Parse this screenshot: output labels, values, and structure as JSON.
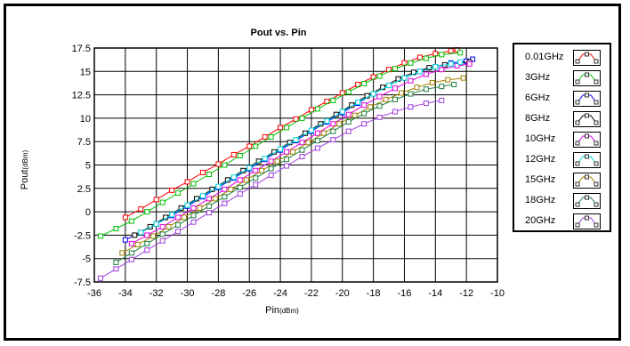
{
  "chart_data": {
    "type": "line",
    "title": "Pout vs. Pin",
    "xlabel": "Pin",
    "xlabel_unit": "(dBm)",
    "ylabel": "Pout",
    "ylabel_unit": "(dBm)",
    "xlim": [
      -36,
      -10
    ],
    "ylim": [
      -7.5,
      17.5
    ],
    "xticks": [
      "-36",
      "-34",
      "-32",
      "-30",
      "-28",
      "-26",
      "-24",
      "-22",
      "-20",
      "-18",
      "-16",
      "-14",
      "-12",
      "-10"
    ],
    "yticks": [
      "17.5",
      "15",
      "12.5",
      "10",
      "7.5",
      "5",
      "2.5",
      "0",
      "-2.5",
      "-5",
      "-7.5"
    ],
    "grid": true,
    "legend_position": "right",
    "series": [
      {
        "name": "0.01GHz",
        "color": "#ff0000",
        "x": [
          -34,
          -33,
          -32,
          -31,
          -30,
          -29,
          -28,
          -27,
          -26,
          -25,
          -24,
          -23,
          -22,
          -21,
          -20,
          -19,
          -18,
          -17,
          -16,
          -15,
          -14,
          -13,
          -12.6
        ],
        "y": [
          -0.6,
          0.3,
          1.3,
          2.3,
          3.2,
          4.2,
          5.1,
          6.1,
          7.0,
          8.0,
          9.0,
          9.9,
          10.9,
          11.8,
          12.7,
          13.6,
          14.4,
          15.2,
          15.9,
          16.5,
          16.9,
          17.2,
          17.3
        ]
      },
      {
        "name": "3GHz",
        "color": "#00c000",
        "x": [
          -35.6,
          -34.6,
          -33.6,
          -32.6,
          -31.6,
          -30.6,
          -29.6,
          -28.6,
          -27.6,
          -26.6,
          -25.6,
          -24.6,
          -23.6,
          -22.6,
          -21.6,
          -20.6,
          -19.6,
          -18.6,
          -17.6,
          -16.6,
          -15.6,
          -14.6,
          -13.6,
          -12.4
        ],
        "y": [
          -2.6,
          -1.8,
          -1.0,
          0.0,
          1.0,
          2.0,
          3.0,
          4.0,
          5.0,
          6.0,
          7.0,
          8.0,
          9.0,
          10.0,
          11.0,
          11.9,
          12.8,
          13.7,
          14.5,
          15.3,
          15.9,
          16.4,
          16.8,
          17.0
        ]
      },
      {
        "name": "6GHz",
        "color": "#0000ff",
        "x": [
          -34,
          -33,
          -32,
          -31,
          -30,
          -29,
          -28,
          -27,
          -26,
          -25,
          -24,
          -23,
          -22,
          -21,
          -20,
          -19,
          -18,
          -17,
          -16,
          -15,
          -14,
          -13,
          -12,
          -11.6
        ],
        "y": [
          -3.0,
          -2.2,
          -1.3,
          -0.4,
          0.6,
          1.6,
          2.6,
          3.6,
          4.6,
          5.6,
          6.6,
          7.6,
          8.6,
          9.6,
          10.6,
          11.6,
          12.6,
          13.5,
          14.3,
          15.0,
          15.5,
          15.9,
          16.1,
          16.3
        ]
      },
      {
        "name": "8GHz",
        "color": "#000000",
        "x": [
          -33.4,
          -32.4,
          -31.4,
          -30.4,
          -29.4,
          -28.4,
          -27.4,
          -26.4,
          -25.4,
          -24.4,
          -23.4,
          -22.4,
          -21.4,
          -20.4,
          -19.4,
          -18.4,
          -17.4,
          -16.4,
          -15.4,
          -14.4,
          -13.4,
          -12.4,
          -11.8
        ],
        "y": [
          -2.5,
          -1.6,
          -0.6,
          0.4,
          1.4,
          2.4,
          3.4,
          4.4,
          5.4,
          6.4,
          7.4,
          8.4,
          9.4,
          10.4,
          11.4,
          12.4,
          13.3,
          14.2,
          14.9,
          15.4,
          15.7,
          15.9,
          16.0
        ]
      },
      {
        "name": "10GHz",
        "color": "#e000e0",
        "x": [
          -33.6,
          -32.6,
          -31.6,
          -30.6,
          -29.6,
          -28.6,
          -27.6,
          -26.6,
          -25.6,
          -24.6,
          -23.6,
          -22.6,
          -21.6,
          -20.6,
          -19.6,
          -18.6,
          -17.6,
          -16.6,
          -15.6,
          -14.6,
          -13.6,
          -12.6,
          -11.8
        ],
        "y": [
          -3.4,
          -2.5,
          -1.6,
          -0.6,
          0.4,
          1.4,
          2.4,
          3.4,
          4.4,
          5.4,
          6.4,
          7.4,
          8.4,
          9.4,
          10.4,
          11.4,
          12.3,
          13.2,
          14.0,
          14.7,
          15.2,
          15.6,
          15.8
        ]
      },
      {
        "name": "12GHz",
        "color": "#00d8d8",
        "x": [
          -33,
          -32,
          -31,
          -30,
          -29,
          -28,
          -27,
          -26,
          -25,
          -24,
          -23,
          -22,
          -21,
          -20,
          -19,
          -18,
          -17,
          -16,
          -15,
          -14,
          -13,
          -12.4
        ],
        "y": [
          -2.2,
          -1.3,
          -0.3,
          0.7,
          1.7,
          2.7,
          3.7,
          4.7,
          5.7,
          6.7,
          7.7,
          8.7,
          9.7,
          10.7,
          11.7,
          12.6,
          13.5,
          14.3,
          15.0,
          15.5,
          15.8,
          16.0
        ]
      },
      {
        "name": "15GHz",
        "color": "#a08000",
        "x": [
          -34.2,
          -33.2,
          -32.2,
          -31.2,
          -30.2,
          -29.2,
          -28.2,
          -27.2,
          -26.2,
          -25.2,
          -24.2,
          -23.2,
          -22.2,
          -21.2,
          -20.2,
          -19.2,
          -18.2,
          -17.2,
          -16.2,
          -15.2,
          -14.2,
          -13.2,
          -12.2
        ],
        "y": [
          -4.4,
          -3.5,
          -2.6,
          -1.6,
          -0.6,
          0.4,
          1.4,
          2.4,
          3.4,
          4.4,
          5.4,
          6.4,
          7.4,
          8.4,
          9.4,
          10.3,
          11.2,
          12.0,
          12.7,
          13.3,
          13.8,
          14.1,
          14.3
        ]
      },
      {
        "name": "18GHz",
        "color": "#208040",
        "x": [
          -34.6,
          -33.6,
          -32.6,
          -31.6,
          -30.6,
          -29.6,
          -28.6,
          -27.6,
          -26.6,
          -25.6,
          -24.6,
          -23.6,
          -22.6,
          -21.6,
          -20.6,
          -19.6,
          -18.6,
          -17.6,
          -16.6,
          -15.6,
          -14.6,
          -13.6,
          -12.8
        ],
        "y": [
          -5.4,
          -4.4,
          -3.4,
          -2.4,
          -1.4,
          -0.4,
          0.6,
          1.6,
          2.6,
          3.6,
          4.6,
          5.6,
          6.6,
          7.6,
          8.6,
          9.6,
          10.5,
          11.3,
          12.0,
          12.6,
          13.1,
          13.4,
          13.6
        ]
      },
      {
        "name": "20GHz",
        "color": "#a040e0",
        "x": [
          -35.6,
          -34.6,
          -33.6,
          -32.6,
          -31.6,
          -30.6,
          -29.6,
          -28.6,
          -27.6,
          -26.6,
          -25.6,
          -24.6,
          -23.6,
          -22.6,
          -21.6,
          -20.6,
          -19.6,
          -18.6,
          -17.6,
          -16.6,
          -15.6,
          -14.6,
          -13.6
        ],
        "y": [
          -7.1,
          -6.1,
          -5.1,
          -4.1,
          -3.1,
          -2.1,
          -1.1,
          -0.1,
          0.9,
          1.9,
          2.9,
          3.9,
          4.9,
          5.9,
          6.8,
          7.7,
          8.6,
          9.4,
          10.1,
          10.7,
          11.2,
          11.6,
          11.9
        ]
      }
    ]
  }
}
